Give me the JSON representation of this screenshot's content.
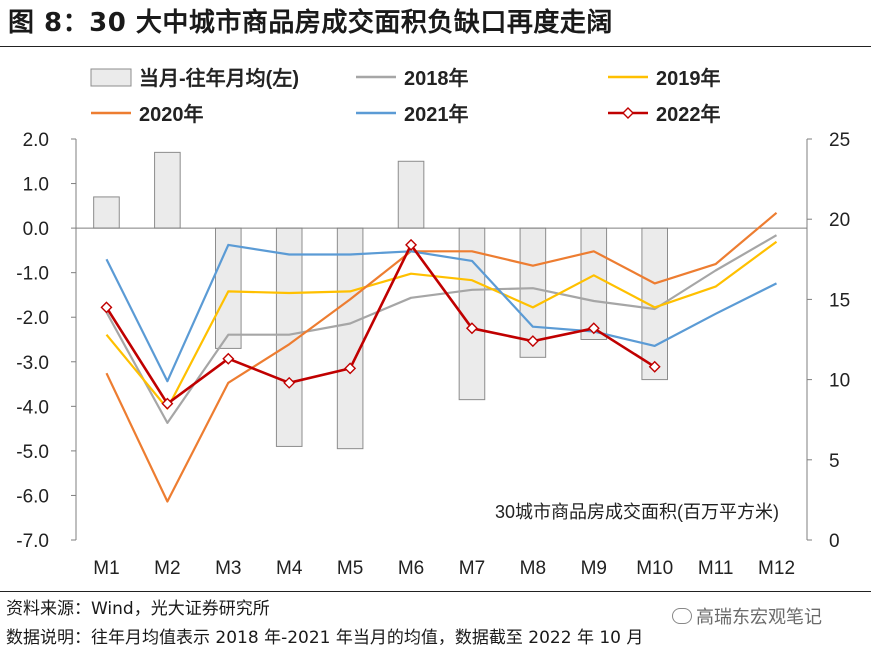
{
  "title": "图 8：30 大中城市商品房成交面积负缺口再度走阔",
  "footer": {
    "source": "资料来源：Wind，光大证券研究所",
    "note": "数据说明：往年月均值表示 2018 年-2021 年当月的均值，数据截至 2022 年 10 月"
  },
  "watermark": "高瑞东宏观笔记",
  "colors": {
    "bar_fill": "#ebebeb",
    "bar_stroke": "#8c8c8c",
    "s2018": "#a6a6a6",
    "s2019": "#ffc000",
    "s2020": "#ed7d31",
    "s2021": "#5b9bd5",
    "s2022": "#c00000"
  },
  "chart_data": {
    "type": "bar+line",
    "categories": [
      "M1",
      "M2",
      "M3",
      "M4",
      "M5",
      "M6",
      "M7",
      "M8",
      "M9",
      "M10",
      "M11",
      "M12"
    ],
    "annotation": "30城市商品房成交面积(百万平方米)",
    "left_axis": {
      "label": "当月-往年月均(左)",
      "ylim": [
        -7.0,
        2.0
      ],
      "ticks": [
        "2.0",
        "1.0",
        "0.0",
        "-1.0",
        "-2.0",
        "-3.0",
        "-4.0",
        "-5.0",
        "-6.0",
        "-7.0"
      ]
    },
    "right_axis": {
      "ylim": [
        0,
        25
      ],
      "ticks": [
        "25",
        "20",
        "15",
        "10",
        "5",
        "0"
      ]
    },
    "bars": {
      "name": "当月-往年月均(左)",
      "values": [
        0.7,
        1.7,
        -2.7,
        -4.9,
        -4.95,
        1.5,
        -3.85,
        -2.9,
        -2.5,
        -3.4,
        null,
        null
      ]
    },
    "series": [
      {
        "name": "2018年",
        "key": "s2018",
        "values": [
          14.2,
          7.3,
          12.8,
          12.8,
          13.5,
          15.1,
          15.6,
          15.7,
          14.9,
          14.4,
          16.8,
          19.0
        ]
      },
      {
        "name": "2019年",
        "key": "s2019",
        "values": [
          12.8,
          8.2,
          15.5,
          15.4,
          15.5,
          16.6,
          16.2,
          14.5,
          16.5,
          14.5,
          15.8,
          18.6
        ]
      },
      {
        "name": "2020年",
        "key": "s2020",
        "values": [
          10.4,
          2.4,
          9.8,
          12.2,
          15.0,
          18.0,
          18.0,
          17.1,
          18.0,
          16.0,
          17.2,
          20.4
        ]
      },
      {
        "name": "2021年",
        "key": "s2021",
        "values": [
          17.5,
          9.9,
          18.4,
          17.8,
          17.8,
          18.0,
          17.4,
          13.3,
          13.0,
          12.1,
          14.1,
          16.0
        ]
      },
      {
        "name": "2022年",
        "key": "s2022",
        "markers": true,
        "values": [
          14.5,
          8.5,
          11.3,
          9.8,
          10.7,
          18.4,
          13.2,
          12.4,
          13.2,
          10.8,
          null,
          null
        ]
      }
    ]
  }
}
